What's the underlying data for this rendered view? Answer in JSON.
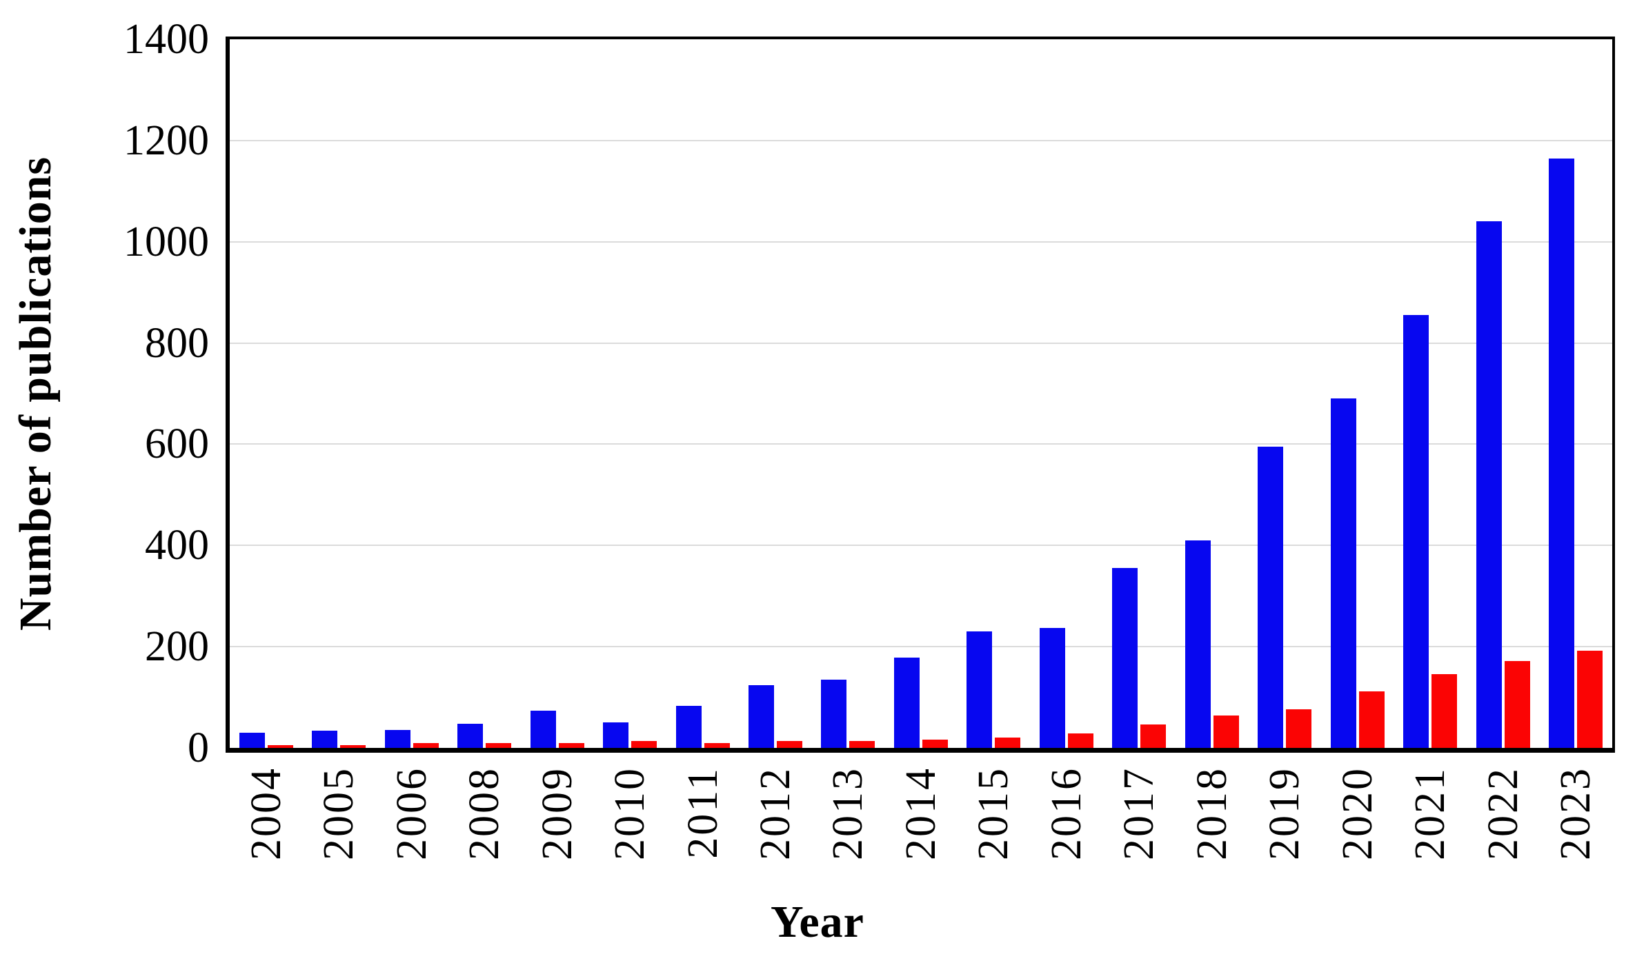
{
  "figure": {
    "y_axis_title": "Number of publications",
    "x_axis_title": "Year",
    "colors": {
      "series_blue": "#0707F0",
      "series_red": "#FB0404",
      "gridline": "#DBDBDB",
      "axis": "#000000",
      "background": "#FFFFFF"
    }
  },
  "chart_data": {
    "type": "bar",
    "title": "",
    "xlabel": "Year",
    "ylabel": "Number of publications",
    "ylim": [
      0,
      1400
    ],
    "yticks": [
      0,
      200,
      400,
      600,
      800,
      1000,
      1200,
      1400
    ],
    "grid": true,
    "legend_position": "none",
    "categories": [
      "2004",
      "2005",
      "2006",
      "2008",
      "2009",
      "2010",
      "2011",
      "2012",
      "2013",
      "2014",
      "2015",
      "2016",
      "2017",
      "2018",
      "2019",
      "2020",
      "2021",
      "2022",
      "2023"
    ],
    "series": [
      {
        "name": "blue-series",
        "color": "#0707F0",
        "values": [
          30,
          34,
          36,
          48,
          74,
          50,
          83,
          124,
          135,
          178,
          230,
          237,
          356,
          410,
          595,
          690,
          855,
          1040,
          1165
        ]
      },
      {
        "name": "red-series",
        "color": "#FB0404",
        "values": [
          5,
          6,
          10,
          10,
          9,
          13,
          9,
          13,
          13,
          16,
          20,
          29,
          46,
          64,
          76,
          112,
          146,
          172,
          192
        ]
      }
    ]
  }
}
